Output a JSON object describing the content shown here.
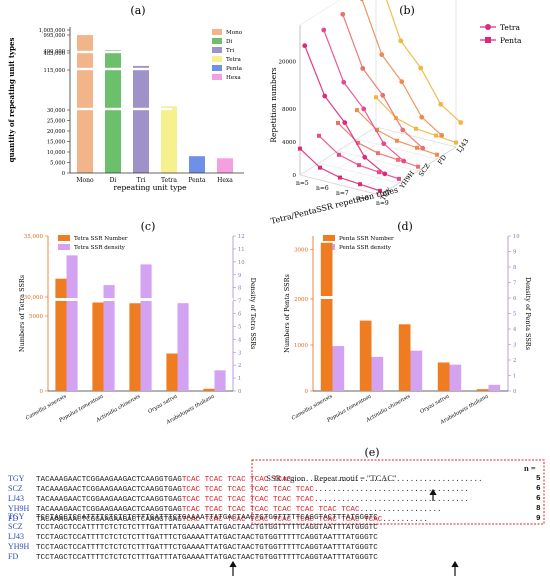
{
  "colors": {
    "orange": "#f07c22",
    "lavender": "#d3a2f1",
    "mono": "#f2b58a",
    "di": "#6cbf6b",
    "tri": "#9f92c8",
    "tetra": "#f7f08e",
    "penta": "#6f90e6",
    "hexa": "#f4a0e0",
    "red": "#e0202a",
    "blue": "#2a4fb8"
  },
  "panel_a": {
    "letter": "(a)",
    "chart_data": {
      "type": "bar",
      "xlabel": "repeating unit type",
      "ylabel": "quantity of repeating unit types",
      "categories": [
        "Mono",
        "Di",
        "Tri",
        "Tetra",
        "Penta",
        "Hexa"
      ],
      "values": [
        993000,
        510000,
        166000,
        34000,
        8000,
        7000
      ],
      "yticks": [
        "0",
        "5,000",
        "10,000",
        "15,000",
        "20,000",
        "25,000",
        "30,000",
        "115,000",
        "485,000",
        "490,000",
        "995,000",
        "1,005,000"
      ],
      "legend": [
        "Mono",
        "Di",
        "Tri",
        "Tetra",
        "Penta",
        "Hexa"
      ],
      "legend_position": "top-right",
      "axis_break": true
    }
  },
  "panel_b": {
    "letter": "(b)",
    "chart_data": {
      "type": "line",
      "ylabel": "Repetition numbers",
      "xlabel": "Tetra/PentaSSR repetition times",
      "x": [
        "n=5",
        "n=6",
        "n=7",
        "n=8",
        "n=9"
      ],
      "z": [
        "TGY",
        "YH9H",
        "SCZ",
        "FD",
        "LJ43"
      ],
      "yticks": [
        "0",
        "4000",
        "8000",
        "20000"
      ],
      "legend": [
        "Tetra",
        "Penta"
      ],
      "legend_position": "top-right",
      "series": [
        {
          "name": "Tetra",
          "group": "TGY",
          "values": [
            23500,
            11000,
            7200,
            3600,
            2200
          ]
        },
        {
          "name": "Penta",
          "group": "TGY",
          "values": [
            3200,
            1500,
            900,
            700,
            500
          ]
        },
        {
          "name": "Tetra",
          "group": "YH9H",
          "values": [
            24500,
            11500,
            7400,
            3800,
            2300
          ]
        },
        {
          "name": "Penta",
          "group": "YH9H",
          "values": [
            3300,
            1600,
            950,
            700,
            500
          ]
        },
        {
          "name": "Tetra",
          "group": "SCZ",
          "values": [
            25500,
            12000,
            7600,
            4000,
            2400
          ]
        },
        {
          "name": "Penta",
          "group": "SCZ",
          "values": [
            3400,
            1600,
            950,
            750,
            520
          ]
        },
        {
          "name": "Tetra",
          "group": "FD",
          "values": [
            26500,
            12500,
            7800,
            4100,
            2500
          ]
        },
        {
          "name": "Penta",
          "group": "FD",
          "values": [
            3500,
            1700,
            1000,
            750,
            520
          ]
        },
        {
          "name": "Tetra",
          "group": "LJ43",
          "values": [
            27500,
            13000,
            8000,
            4200,
            2600
          ]
        },
        {
          "name": "Penta",
          "group": "LJ43",
          "values": [
            3600,
            1700,
            1000,
            780,
            540
          ]
        }
      ]
    }
  },
  "panel_c": {
    "letter": "(c)",
    "chart_data": {
      "type": "bar",
      "ylabel": "Numbers of Tetra SSRs",
      "y2label": "Density of Tetra SSRs",
      "categories": [
        "Camellia sinensis",
        "Populus tomentosa",
        "Actinidia chinensis",
        "Oryza sativa",
        "Arabidopsis thaliana"
      ],
      "yticks": [
        "0",
        "5000",
        "30,000",
        "35,000"
      ],
      "y2ticks": [
        "0",
        "1",
        "2",
        "3",
        "4",
        "5",
        "6",
        "7",
        "8",
        "9",
        "10",
        "11",
        "12"
      ],
      "legend_position": "top-left",
      "series": [
        {
          "name": "Tetra SSR Number",
          "values": [
            31500,
            5900,
            5850,
            2500,
            150
          ]
        },
        {
          "name": "Tetra SSR density",
          "values": [
            10.5,
            8.2,
            9.8,
            6.8,
            1.6
          ]
        }
      ]
    }
  },
  "panel_d": {
    "letter": "(d)",
    "chart_data": {
      "type": "bar",
      "ylabel": "Numbers of Penta SSRs",
      "y2label": "Density of Penta SSRs",
      "categories": [
        "Camellia sinensis",
        "Populus tomentosa",
        "Actinidia chinensis",
        "Oryza sativa",
        "Arabidopsis thaliana"
      ],
      "yticks": [
        "0",
        "1000",
        "2000",
        "3000"
      ],
      "y2ticks": [
        "0",
        "1",
        "2",
        "3",
        "4",
        "5",
        "6",
        "7",
        "8",
        "9",
        "10"
      ],
      "legend_position": "top-left",
      "series": [
        {
          "name": "Penta SSR Number",
          "values": [
            3150,
            1530,
            1450,
            620,
            40
          ]
        },
        {
          "name": "Penta SSR density",
          "values": [
            2.9,
            2.2,
            2.6,
            1.7,
            0.4
          ]
        }
      ]
    }
  },
  "panel_e": {
    "letter": "(e)",
    "header_region": "SSR region",
    "header_motif": "Repeat motif = \"TCAC\"",
    "header_n": "n =",
    "rows1": [
      {
        "name": "TGY",
        "pre": "TACAAAGAACTCGGAAGAAGACTCAAGGTGAG",
        "rep": "TCAC TCAC TCAC TCAC TCAC",
        "tail": "..........................................",
        "n": "5"
      },
      {
        "name": "SCZ",
        "pre": "TACAAAGAACTCGGAAGAAGACTCAAGGTGAG",
        "rep": "TCAC TCAC TCAC TCAC TCAC TCAC",
        "tail": "..................................",
        "n": "6"
      },
      {
        "name": "LJ43",
        "pre": "TACAAAGAACTCGGAAGAAGACTCAAGGTGAG",
        "rep": "TCAC TCAC TCAC TCAC TCAC TCAC",
        "tail": "..................................",
        "n": "6"
      },
      {
        "name": "YH9H",
        "pre": "TACAAAGAACTCGGAAGAAGACTCAAGGTGAG",
        "rep": "TCAC TCAC TCAC TCAC TCAC TCAC TCAC TCAC",
        "tail": "..................",
        "n": "8"
      },
      {
        "name": "FD",
        "pre": "TACAAAGAACTCGGAAGAAGACTCAAGGTGAG",
        "rep": "TCAC TCAC TCAC TCAC TCAC TCAC TCAC TCAC TCAC",
        "tail": "..........",
        "n": "9"
      }
    ],
    "rows2": [
      {
        "name": "TGY",
        "seq": "TCCTAGCTCCATTTTCTCTCTCTTTGATTTCTGAAAATTATGACTAACTGTGGTTTTTCAGGTACTTTATGGGTC"
      },
      {
        "name": "SCZ",
        "seq": "TCCTAGCTCCATTTTCTCTCTCTTTGATTTATGAAAATTATGACTAACTGTGGTTTTTCAGGTAATTTATGGGTC"
      },
      {
        "name": "LJ43",
        "seq": "TCCTAGCTCCATTTTCTCTCTCTTTGATTTCTGAAAATTATGACTAACTGTGGTTTTTCAGGTAATTTATGGGTC"
      },
      {
        "name": "YH9H",
        "seq": "TCCTAGCTCCATTTTCTCTCTCTTTGATTTCTGAAAATTATGACTAACTGTGGTTTTTCAGGTAATTTATGGGTC"
      },
      {
        "name": "FD",
        "seq": "TCCTAGCTCCATTTTCTCTCTCTTTGATTTATGAAAATTATGACTAACTGTGGTTTTTCAGGTAATTTATGGGTC"
      }
    ]
  }
}
